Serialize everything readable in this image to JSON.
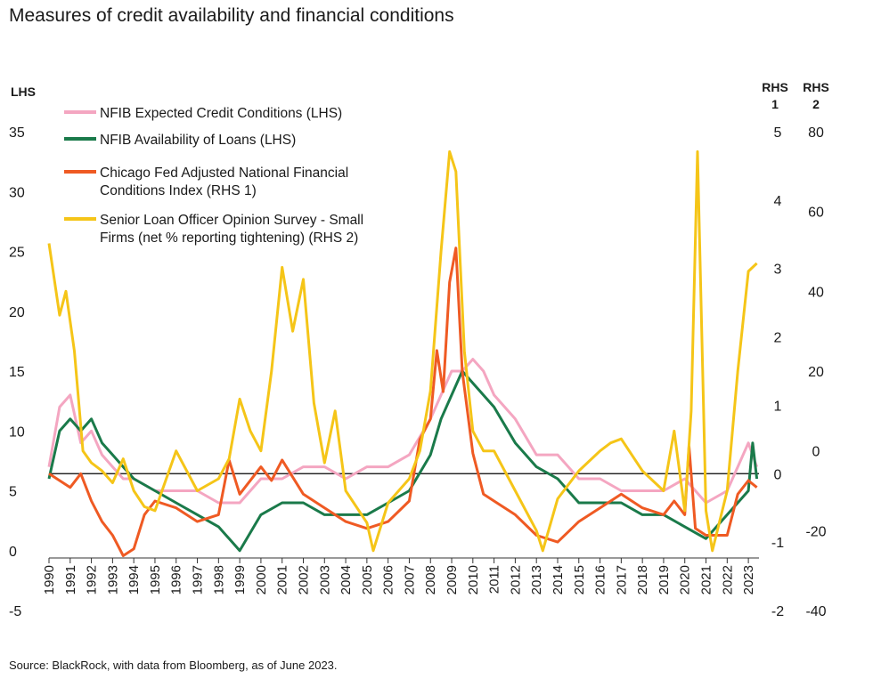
{
  "title": "Measures of credit availability and financial conditions",
  "source": "Source: BlackRock, with data from Bloomberg, as of June 2023.",
  "colors": {
    "nfib_expected": "#f4a6c1",
    "nfib_availability": "#1a7a4a",
    "chicago_fed": "#ef5a23",
    "sloos": "#f5c518",
    "zero_line": "#000000"
  },
  "chart_data": {
    "type": "line",
    "x": [
      1990,
      1991,
      1992,
      1993,
      1994,
      1995,
      1996,
      1997,
      1998,
      1999,
      2000,
      2001,
      2002,
      2003,
      2004,
      2005,
      2006,
      2007,
      2008,
      2009,
      2010,
      2011,
      2012,
      2013,
      2014,
      2015,
      2016,
      2017,
      2018,
      2019,
      2020,
      2021,
      2022,
      2023
    ],
    "x_tick_labels": [
      "1990",
      "1991",
      "1992",
      "1993",
      "1994",
      "1995",
      "1996",
      "1997",
      "1998",
      "1999",
      "2000",
      "2001",
      "2002",
      "2003",
      "2004",
      "2005",
      "2006",
      "2007",
      "2008",
      "2009",
      "2010",
      "2011",
      "2012",
      "2013",
      "2014",
      "2015",
      "2016",
      "2017",
      "2018",
      "2019",
      "2020",
      "2021",
      "2022",
      "2023"
    ],
    "xlim": [
      1990,
      2023.5
    ],
    "axes": {
      "lhs": {
        "label": "LHS",
        "ylim": [
          -5,
          35
        ],
        "ticks": [
          "35",
          "30",
          "25",
          "20",
          "15",
          "10",
          "5",
          "0",
          "-5"
        ]
      },
      "rhs1": {
        "label_line1": "RHS",
        "label_line2": "1",
        "ylim": [
          -2,
          5
        ],
        "ticks": [
          "5",
          "4",
          "3",
          "2",
          "1",
          "0",
          "-1",
          "-2"
        ]
      },
      "rhs2": {
        "label_line1": "RHS",
        "label_line2": "2",
        "ylim": [
          -40,
          80
        ],
        "ticks": [
          "80",
          "60",
          "40",
          "20",
          "0",
          "-20",
          "-40"
        ]
      }
    },
    "zero_line_rhs1": 0,
    "legend": "top-left",
    "series": [
      {
        "name": "NFIB Expected Credit Conditions (LHS)",
        "axis": "lhs",
        "color_key": "nfib_expected",
        "x": [
          1990,
          1990.5,
          1991,
          1991.5,
          1992,
          1992.5,
          1993,
          1993.5,
          1994,
          1995,
          1996,
          1997,
          1998,
          1999,
          2000,
          2001,
          2002,
          2003,
          2004,
          2005,
          2006,
          2007,
          2008,
          2008.5,
          2009,
          2009.5,
          2010,
          2010.5,
          2011,
          2012,
          2013,
          2014,
          2015,
          2016,
          2017,
          2018,
          2019,
          2020,
          2021,
          2022,
          2022.5,
          2023,
          2023.4
        ],
        "values": [
          7,
          12,
          13,
          9,
          10,
          8,
          7,
          6,
          6,
          5,
          5,
          5,
          4,
          4,
          6,
          6,
          7,
          7,
          6,
          7,
          7,
          8,
          11,
          13,
          15,
          15,
          16,
          15,
          13,
          11,
          8,
          8,
          6,
          6,
          5,
          5,
          5,
          6,
          4,
          5,
          7,
          9,
          7
        ]
      },
      {
        "name": "NFIB Availability of Loans (LHS)",
        "axis": "lhs",
        "color_key": "nfib_availability",
        "x": [
          1990,
          1990.5,
          1991,
          1991.5,
          1992,
          1992.5,
          1993,
          1993.5,
          1994,
          1995,
          1996,
          1997,
          1998,
          1998.5,
          1999,
          2000,
          2001,
          2002,
          2003,
          2004,
          2005,
          2006,
          2007,
          2008,
          2008.5,
          2009,
          2009.5,
          2010,
          2011,
          2012,
          2013,
          2014,
          2015,
          2016,
          2017,
          2018,
          2019,
          2020,
          2021,
          2022,
          2023,
          2023.2,
          2023.4
        ],
        "values": [
          6,
          10,
          11,
          10,
          11,
          9,
          8,
          7,
          6,
          5,
          4,
          3,
          2,
          1,
          0,
          3,
          4,
          4,
          3,
          3,
          3,
          4,
          5,
          8,
          11,
          13,
          15,
          14,
          12,
          9,
          7,
          6,
          4,
          4,
          4,
          3,
          3,
          2,
          1,
          3,
          5,
          9,
          6
        ]
      },
      {
        "name": "Chicago Fed Adjusted National Financial Conditions Index (RHS 1)",
        "axis": "rhs1",
        "color_key": "chicago_fed",
        "x": [
          1990,
          1990.5,
          1991,
          1991.5,
          1992,
          1992.5,
          1993,
          1993.5,
          1994,
          1994.5,
          1995,
          1996,
          1997,
          1998,
          1998.5,
          1999,
          2000,
          2000.5,
          2001,
          2002,
          2003,
          2004,
          2005,
          2006,
          2007,
          2007.5,
          2008,
          2008.3,
          2008.6,
          2008.9,
          2009.2,
          2009.5,
          2010,
          2010.5,
          2011,
          2012,
          2013,
          2014,
          2015,
          2016,
          2017,
          2018,
          2019,
          2019.5,
          2020,
          2020.2,
          2020.5,
          2021,
          2022,
          2022.5,
          2023,
          2023.4
        ],
        "values": [
          0,
          -0.1,
          -0.2,
          0,
          -0.4,
          -0.7,
          -0.9,
          -1.2,
          -1.1,
          -0.6,
          -0.4,
          -0.5,
          -0.7,
          -0.6,
          0.2,
          -0.3,
          0.1,
          -0.1,
          0.2,
          -0.3,
          -0.5,
          -0.7,
          -0.8,
          -0.7,
          -0.4,
          0.5,
          0.8,
          1.8,
          1.2,
          2.8,
          3.3,
          1.5,
          0.3,
          -0.3,
          -0.4,
          -0.6,
          -0.9,
          -1.0,
          -0.7,
          -0.5,
          -0.3,
          -0.5,
          -0.6,
          -0.4,
          -0.6,
          0.4,
          -0.8,
          -0.9,
          -0.9,
          -0.3,
          -0.1,
          -0.2
        ]
      },
      {
        "name": "Senior Loan Officer Opinion Survey - Small Firms (net % reporting tightening) (RHS 2)",
        "axis": "rhs2",
        "color_key": "sloos",
        "x": [
          1990,
          1990.5,
          1990.8,
          1991.2,
          1991.6,
          1992,
          1992.5,
          1993,
          1993.5,
          1994,
          1994.5,
          1995,
          1996,
          1997,
          1998,
          1998.5,
          1999,
          1999.5,
          2000,
          2000.5,
          2001,
          2001.5,
          2002,
          2002.5,
          2003,
          2003.5,
          2004,
          2005,
          2005.3,
          2006,
          2007,
          2007.5,
          2008,
          2008.5,
          2008.9,
          2009.2,
          2009.6,
          2010,
          2010.5,
          2011,
          2012,
          2013,
          2013.3,
          2014,
          2015,
          2016,
          2016.5,
          2017,
          2018,
          2019,
          2019.5,
          2020,
          2020.3,
          2020.6,
          2021,
          2021.3,
          2022,
          2022.5,
          2023,
          2023.4
        ],
        "values": [
          52,
          34,
          40,
          25,
          0,
          -3,
          -5,
          -8,
          -2,
          -10,
          -14,
          -15,
          0,
          -10,
          -7,
          -2,
          13,
          5,
          0,
          20,
          46,
          30,
          43,
          12,
          -3,
          10,
          -10,
          -18,
          -25,
          -13,
          -7,
          0,
          15,
          50,
          75,
          70,
          25,
          5,
          0,
          0,
          -10,
          -20,
          -25,
          -12,
          -5,
          0,
          2,
          3,
          -5,
          -10,
          5,
          -15,
          10,
          75,
          -15,
          -25,
          -10,
          20,
          45,
          47
        ]
      }
    ]
  }
}
